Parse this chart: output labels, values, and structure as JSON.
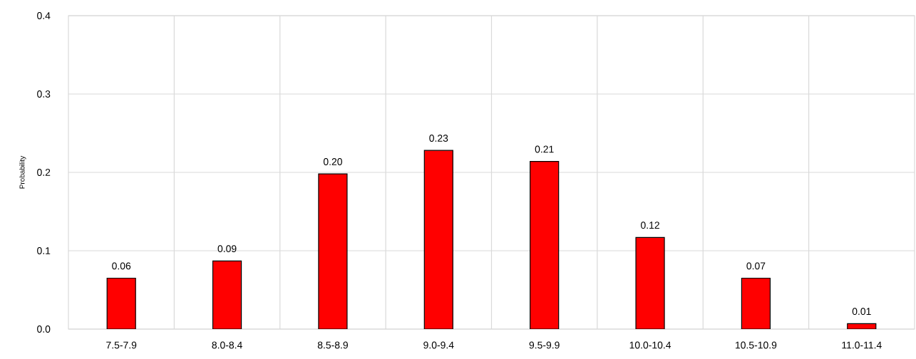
{
  "chart_data": {
    "type": "bar",
    "ylabel": "Probability",
    "categories": [
      "7.5-7.9",
      "8.0-8.4",
      "8.5-8.9",
      "9.0-9.4",
      "9.5-9.9",
      "10.0-10.4",
      "10.5-10.9",
      "11.0-11.4"
    ],
    "values": [
      0.065,
      0.087,
      0.198,
      0.228,
      0.214,
      0.117,
      0.065,
      0.007
    ],
    "value_labels": [
      "0.06",
      "0.09",
      "0.20",
      "0.23",
      "0.21",
      "0.12",
      "0.07",
      "0.01"
    ],
    "color": "#ff0000",
    "ylim": [
      0,
      0.4
    ],
    "yticks": [
      {
        "value": 0,
        "label": "0.0"
      },
      {
        "value": 0.1,
        "label": "0.1"
      },
      {
        "value": 0.2,
        "label": "0.2"
      },
      {
        "value": 0.3,
        "label": "0.3"
      },
      {
        "value": 0.4,
        "label": "0.4"
      }
    ],
    "grid": true
  }
}
